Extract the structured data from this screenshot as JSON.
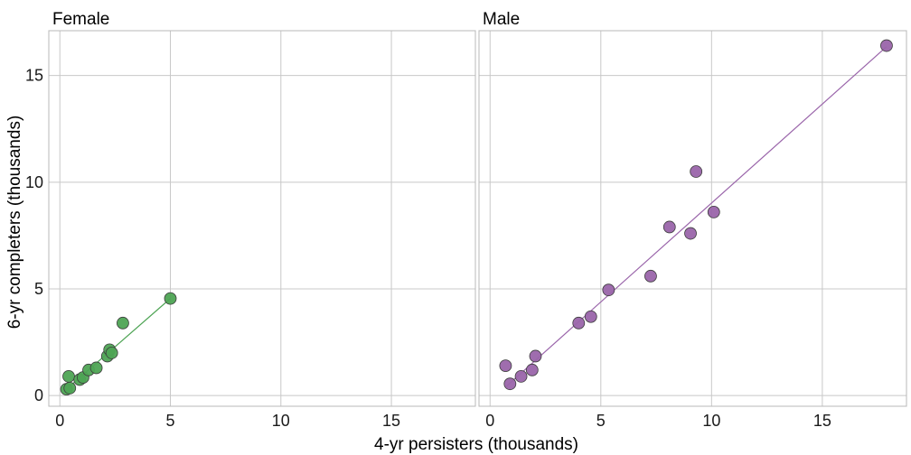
{
  "chart_data": {
    "type": "scatter",
    "xlabel": "4-yr persisters (thousands)",
    "ylabel": "6-yr completers (thousands)",
    "xlim": [
      -0.5,
      18.8
    ],
    "ylim": [
      -0.5,
      17.1
    ],
    "xticks": [
      0,
      5,
      10,
      15
    ],
    "yticks": [
      0,
      5,
      10,
      15
    ],
    "grid": true,
    "panels": [
      {
        "title": "Female",
        "color": "#4ea454",
        "fit": {
          "x": [
            0.3,
            5.0
          ],
          "y": [
            0.3,
            4.55
          ]
        },
        "points": [
          {
            "x": 0.3,
            "y": 0.3
          },
          {
            "x": 0.45,
            "y": 0.35
          },
          {
            "x": 0.4,
            "y": 0.9
          },
          {
            "x": 0.9,
            "y": 0.75
          },
          {
            "x": 1.05,
            "y": 0.85
          },
          {
            "x": 1.3,
            "y": 1.2
          },
          {
            "x": 1.65,
            "y": 1.3
          },
          {
            "x": 2.15,
            "y": 1.85
          },
          {
            "x": 2.25,
            "y": 2.15
          },
          {
            "x": 2.35,
            "y": 2.0
          },
          {
            "x": 2.85,
            "y": 3.4
          },
          {
            "x": 5.0,
            "y": 4.55
          }
        ]
      },
      {
        "title": "Male",
        "color": "#9a65aa",
        "fit": {
          "x": [
            0.7,
            17.9
          ],
          "y": [
            0.4,
            16.35
          ]
        },
        "points": [
          {
            "x": 0.7,
            "y": 1.4
          },
          {
            "x": 0.9,
            "y": 0.55
          },
          {
            "x": 1.4,
            "y": 0.9
          },
          {
            "x": 1.9,
            "y": 1.2
          },
          {
            "x": 2.05,
            "y": 1.85
          },
          {
            "x": 4.0,
            "y": 3.4
          },
          {
            "x": 4.55,
            "y": 3.7
          },
          {
            "x": 5.35,
            "y": 4.95
          },
          {
            "x": 7.25,
            "y": 5.6
          },
          {
            "x": 8.1,
            "y": 7.9
          },
          {
            "x": 9.05,
            "y": 7.6
          },
          {
            "x": 9.3,
            "y": 10.5
          },
          {
            "x": 10.1,
            "y": 8.6
          },
          {
            "x": 17.9,
            "y": 16.4
          }
        ]
      }
    ]
  }
}
